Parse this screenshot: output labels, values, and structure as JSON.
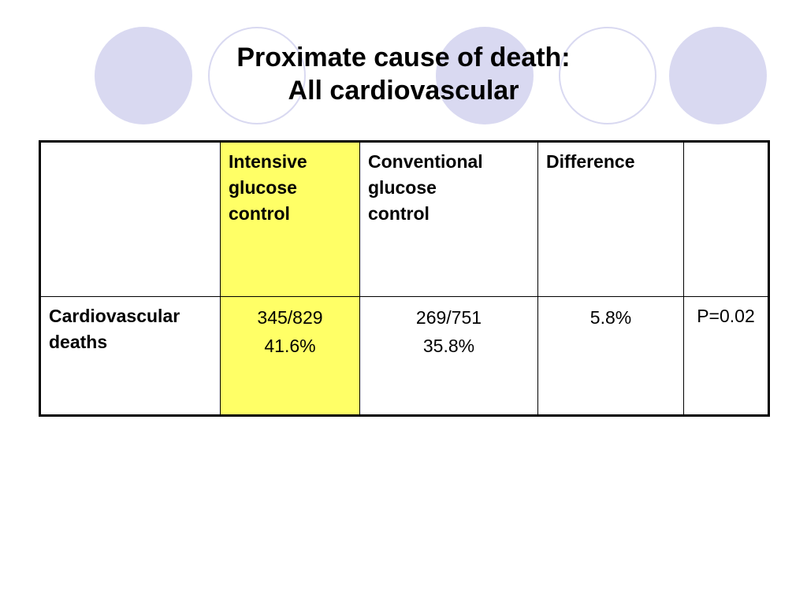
{
  "title": {
    "line1": "Proximate cause of death:",
    "line2": "All cardiovascular"
  },
  "decor_color": "#d9d9f1",
  "highlight_color": "#ffff66",
  "table": {
    "headers": {
      "empty": "",
      "intensive": [
        "Intensive",
        "glucose",
        "control"
      ],
      "conventional": [
        "Conventional",
        "glucose",
        "control"
      ],
      "difference": "Difference",
      "p_header": ""
    },
    "row": {
      "label": [
        "Cardiovascular",
        "deaths"
      ],
      "intensive": [
        "345/829",
        "41.6%"
      ],
      "conventional": [
        "269/751",
        "35.8%"
      ],
      "difference": "5.8%",
      "p_value": "P=0.02"
    }
  }
}
